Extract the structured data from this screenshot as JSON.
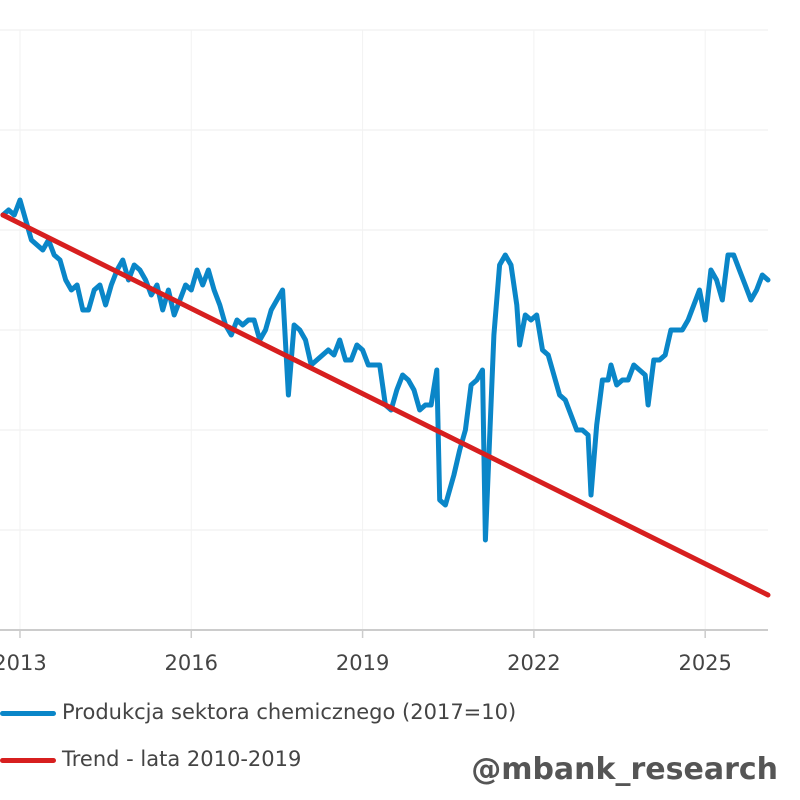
{
  "chart_data": {
    "type": "line",
    "title": "",
    "xlabel": "",
    "ylabel": "",
    "x_ticks": [
      "2013",
      "2016",
      "2019",
      "2022",
      "2025"
    ],
    "grid": true,
    "legend_position": "bottom-left",
    "series": [
      {
        "name": "Produkcja sektora chemicznego (2017=10)",
        "color": "#0a86c8",
        "points": [
          [
            2012.7,
            8.3
          ],
          [
            2012.8,
            8.4
          ],
          [
            2012.9,
            8.3
          ],
          [
            2013.0,
            8.6
          ],
          [
            2013.1,
            8.2
          ],
          [
            2013.2,
            7.8
          ],
          [
            2013.3,
            7.7
          ],
          [
            2013.4,
            7.6
          ],
          [
            2013.5,
            7.8
          ],
          [
            2013.6,
            7.5
          ],
          [
            2013.7,
            7.4
          ],
          [
            2013.8,
            7.0
          ],
          [
            2013.9,
            6.8
          ],
          [
            2014.0,
            6.9
          ],
          [
            2014.1,
            6.4
          ],
          [
            2014.2,
            6.4
          ],
          [
            2014.3,
            6.8
          ],
          [
            2014.4,
            6.9
          ],
          [
            2014.5,
            6.5
          ],
          [
            2014.6,
            6.9
          ],
          [
            2014.7,
            7.2
          ],
          [
            2014.8,
            7.4
          ],
          [
            2014.9,
            7.0
          ],
          [
            2015.0,
            7.3
          ],
          [
            2015.1,
            7.2
          ],
          [
            2015.2,
            7.0
          ],
          [
            2015.3,
            6.7
          ],
          [
            2015.4,
            6.9
          ],
          [
            2015.5,
            6.4
          ],
          [
            2015.6,
            6.8
          ],
          [
            2015.7,
            6.3
          ],
          [
            2015.8,
            6.6
          ],
          [
            2015.9,
            6.9
          ],
          [
            2016.0,
            6.8
          ],
          [
            2016.1,
            7.2
          ],
          [
            2016.2,
            6.9
          ],
          [
            2016.3,
            7.2
          ],
          [
            2016.4,
            6.8
          ],
          [
            2016.5,
            6.5
          ],
          [
            2016.6,
            6.1
          ],
          [
            2016.7,
            5.9
          ],
          [
            2016.8,
            6.2
          ],
          [
            2016.9,
            6.1
          ],
          [
            2017.0,
            6.2
          ],
          [
            2017.1,
            6.2
          ],
          [
            2017.2,
            5.8
          ],
          [
            2017.3,
            6.0
          ],
          [
            2017.4,
            6.4
          ],
          [
            2017.5,
            6.6
          ],
          [
            2017.6,
            6.8
          ],
          [
            2017.7,
            4.7
          ],
          [
            2017.8,
            6.1
          ],
          [
            2017.9,
            6.0
          ],
          [
            2018.0,
            5.8
          ],
          [
            2018.1,
            5.3
          ],
          [
            2018.2,
            5.4
          ],
          [
            2018.3,
            5.5
          ],
          [
            2018.4,
            5.6
          ],
          [
            2018.5,
            5.5
          ],
          [
            2018.6,
            5.8
          ],
          [
            2018.7,
            5.4
          ],
          [
            2018.8,
            5.4
          ],
          [
            2018.9,
            5.7
          ],
          [
            2019.0,
            5.6
          ],
          [
            2019.1,
            5.3
          ],
          [
            2019.2,
            5.3
          ],
          [
            2019.3,
            5.3
          ],
          [
            2019.4,
            4.5
          ],
          [
            2019.5,
            4.4
          ],
          [
            2019.6,
            4.8
          ],
          [
            2019.7,
            5.1
          ],
          [
            2019.8,
            5.0
          ],
          [
            2019.9,
            4.8
          ],
          [
            2020.0,
            4.4
          ],
          [
            2020.1,
            4.5
          ],
          [
            2020.2,
            4.5
          ],
          [
            2020.3,
            5.2
          ],
          [
            2020.35,
            2.6
          ],
          [
            2020.45,
            2.5
          ],
          [
            2020.6,
            3.1
          ],
          [
            2020.7,
            3.6
          ],
          [
            2020.8,
            4.0
          ],
          [
            2020.9,
            4.9
          ],
          [
            2021.0,
            5.0
          ],
          [
            2021.1,
            5.2
          ],
          [
            2021.15,
            1.8
          ],
          [
            2021.3,
            5.9
          ],
          [
            2021.4,
            7.3
          ],
          [
            2021.5,
            7.5
          ],
          [
            2021.6,
            7.3
          ],
          [
            2021.7,
            6.5
          ],
          [
            2021.75,
            5.7
          ],
          [
            2021.85,
            6.3
          ],
          [
            2021.95,
            6.2
          ],
          [
            2022.05,
            6.3
          ],
          [
            2022.15,
            5.6
          ],
          [
            2022.25,
            5.5
          ],
          [
            2022.35,
            5.1
          ],
          [
            2022.45,
            4.7
          ],
          [
            2022.55,
            4.6
          ],
          [
            2022.65,
            4.3
          ],
          [
            2022.75,
            4.0
          ],
          [
            2022.85,
            4.0
          ],
          [
            2022.95,
            3.9
          ],
          [
            2023.0,
            2.7
          ],
          [
            2023.1,
            4.1
          ],
          [
            2023.2,
            5.0
          ],
          [
            2023.3,
            5.0
          ],
          [
            2023.35,
            5.3
          ],
          [
            2023.45,
            4.9
          ],
          [
            2023.55,
            5.0
          ],
          [
            2023.65,
            5.0
          ],
          [
            2023.75,
            5.3
          ],
          [
            2023.85,
            5.2
          ],
          [
            2023.95,
            5.1
          ],
          [
            2024.0,
            4.5
          ],
          [
            2024.1,
            5.4
          ],
          [
            2024.2,
            5.4
          ],
          [
            2024.3,
            5.5
          ],
          [
            2024.4,
            6.0
          ],
          [
            2024.5,
            6.0
          ],
          [
            2024.6,
            6.0
          ],
          [
            2024.7,
            6.2
          ],
          [
            2024.8,
            6.5
          ],
          [
            2024.9,
            6.8
          ],
          [
            2025.0,
            6.2
          ],
          [
            2025.1,
            7.2
          ],
          [
            2025.2,
            7.0
          ],
          [
            2025.3,
            6.6
          ],
          [
            2025.4,
            7.5
          ],
          [
            2025.5,
            7.5
          ],
          [
            2025.6,
            7.2
          ],
          [
            2025.7,
            6.9
          ],
          [
            2025.8,
            6.6
          ],
          [
            2025.9,
            6.8
          ],
          [
            2026.0,
            7.1
          ],
          [
            2026.1,
            7.0
          ]
        ]
      },
      {
        "name": "Trend - lata 2010-2019",
        "color": "#d71f1f",
        "points": [
          [
            2012.7,
            8.3
          ],
          [
            2026.1,
            0.7
          ]
        ]
      }
    ],
    "xlim": [
      2012.65,
      2026.1
    ],
    "ylim": [
      0,
      12
    ],
    "y_gridlines": [
      0,
      2,
      4,
      6,
      8,
      10,
      12
    ]
  },
  "watermark": "@mbank_research"
}
